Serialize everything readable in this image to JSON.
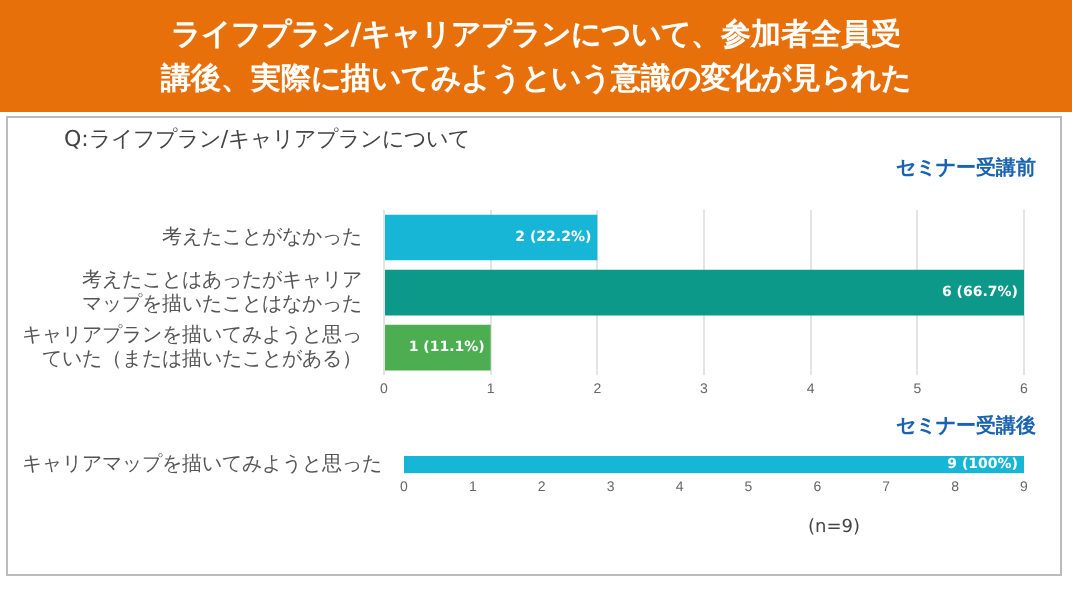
{
  "chart_data": [
    {
      "type": "bar",
      "orientation": "horizontal",
      "title": "ライフプラン/キャリアプランについて、参加者全員受講後、実際に描いてみようという意識の変化が見られた",
      "subtitle": "Q:ライフプラン/キャリアプランについて",
      "categories": [
        "考えたことがなかった",
        "考えたことはあったがキャリアマップを描いたことはなかった",
        "キャリアプランを描いてみようと思っていた（または描いたことがある）"
      ],
      "values": [
        2,
        6,
        1
      ],
      "colors": [
        "#17b6d6",
        "#0c998a",
        "#4cae50"
      ],
      "value_labels": [
        "2 (22.2%)",
        "6 (66.7%)",
        "1 (11.1%)"
      ],
      "xlim": [
        0,
        6
      ],
      "xticks": [
        0,
        1,
        2,
        3,
        4,
        5,
        6
      ],
      "grid": "x",
      "annotations": [
        "セミナー受講前"
      ]
    },
    {
      "type": "bar",
      "orientation": "horizontal",
      "categories": [
        "キャリアマップを描いてみようと思った"
      ],
      "values": [
        9
      ],
      "color": "#17b6d6",
      "value_labels": [
        "9 (100%)"
      ],
      "xlim": [
        0,
        9
      ],
      "xticks": [
        0,
        1,
        2,
        3,
        4,
        5,
        6,
        7,
        8,
        9
      ],
      "annotations": [
        "セミナー受講後",
        "(n=9)"
      ]
    }
  ]
}
